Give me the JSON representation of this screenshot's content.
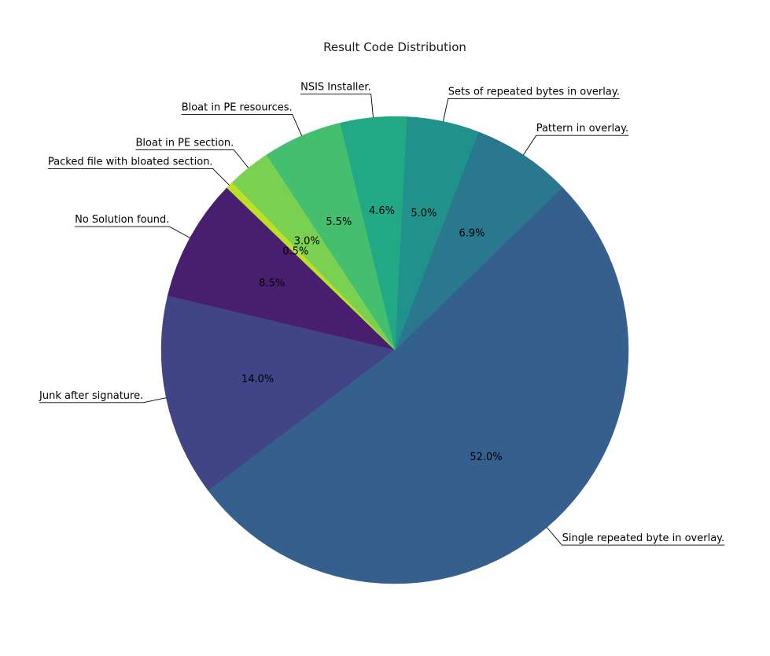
{
  "chart_data": {
    "type": "pie",
    "title": "Result Code Distribution",
    "start_angle_deg": 136,
    "slices": [
      {
        "label": "No Solution found.",
        "value": 8.5,
        "pct_label": "8.5%",
        "color": "#481f70"
      },
      {
        "label": "Junk after signature.",
        "value": 14.0,
        "pct_label": "14.0%",
        "color": "#414487"
      },
      {
        "label": "Single repeated byte in overlay.",
        "value": 52.0,
        "pct_label": "52.0%",
        "color": "#355f8d"
      },
      {
        "label": "Pattern in overlay.",
        "value": 6.9,
        "pct_label": "6.9%",
        "color": "#2a788e"
      },
      {
        "label": "Sets of repeated bytes in overlay.",
        "value": 5.0,
        "pct_label": "5.0%",
        "color": "#21918c"
      },
      {
        "label": "NSIS Installer.",
        "value": 4.6,
        "pct_label": "4.6%",
        "color": "#22a884"
      },
      {
        "label": "Bloat in PE resources.",
        "value": 5.5,
        "pct_label": "5.5%",
        "color": "#44bf70"
      },
      {
        "label": "Bloat in PE section.",
        "value": 3.0,
        "pct_label": "3.0%",
        "color": "#7ad151"
      },
      {
        "label": "Packed file with bloated section.",
        "value": 0.5,
        "pct_label": "0.5%",
        "color": "#bddf26"
      }
    ]
  }
}
